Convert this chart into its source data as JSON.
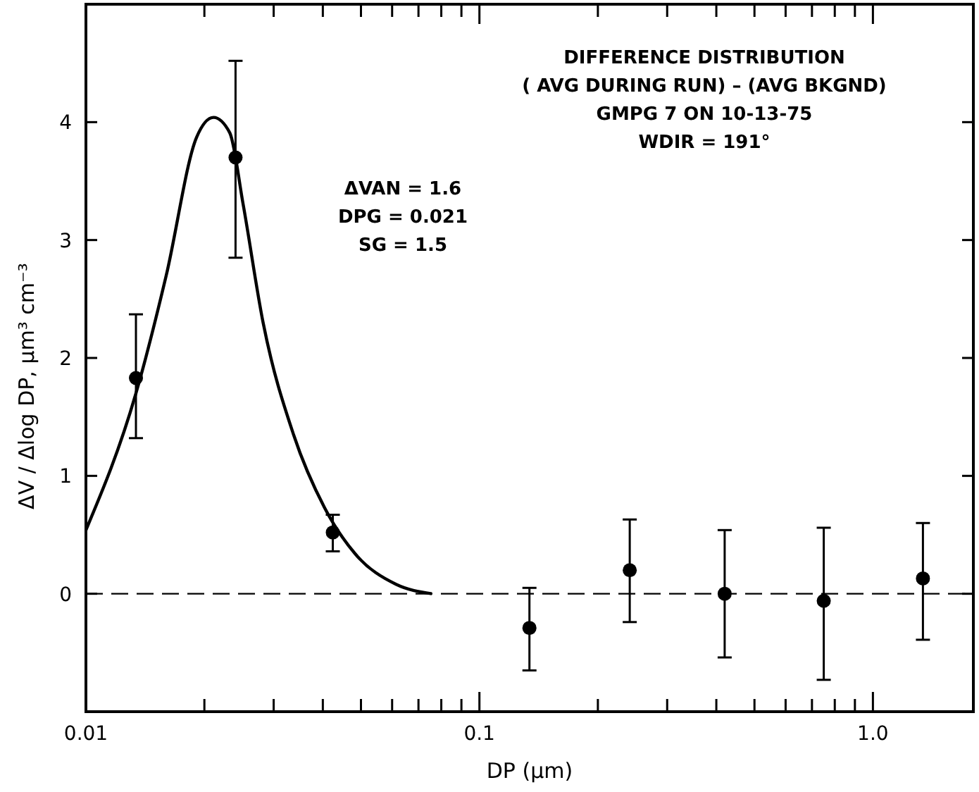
{
  "chart_data": {
    "type": "scatter",
    "xlabel": "DP (μm)",
    "ylabel": "ΔV / Δlog DP,  μm³ cm⁻³",
    "annotations": [
      "DIFFERENCE DISTRIBUTION",
      "( AVG DURING RUN) – (AVG BKGND)",
      "GMPG 7 ON 10-13-75",
      "WDIR = 191°",
      "ΔVAN = 1.6",
      "DPG = 0.021",
      "SG = 1.5"
    ],
    "log": "x",
    "grid": false,
    "marker": "circle",
    "xlim": [
      0.01,
      1.8
    ],
    "ylim": [
      -1,
      5
    ],
    "xticks": [
      {
        "value": 0.01,
        "label": "0.01"
      },
      {
        "value": 0.02,
        "label": null
      },
      {
        "value": 0.03,
        "label": null
      },
      {
        "value": 0.04,
        "label": null
      },
      {
        "value": 0.05,
        "label": null
      },
      {
        "value": 0.06,
        "label": null
      },
      {
        "value": 0.07,
        "label": null
      },
      {
        "value": 0.08,
        "label": null
      },
      {
        "value": 0.09,
        "label": null
      },
      {
        "value": 0.1,
        "label": "0.1"
      },
      {
        "value": 0.2,
        "label": null
      },
      {
        "value": 0.3,
        "label": null
      },
      {
        "value": 0.4,
        "label": null
      },
      {
        "value": 0.5,
        "label": null
      },
      {
        "value": 0.6,
        "label": null
      },
      {
        "value": 0.7,
        "label": null
      },
      {
        "value": 0.8,
        "label": null
      },
      {
        "value": 0.9,
        "label": null
      },
      {
        "value": 1,
        "label": "1.0"
      }
    ],
    "yticks": [
      0,
      1,
      2,
      3,
      4
    ],
    "ref_lines": [
      {
        "axis": "y",
        "value": 0,
        "line_style": "dashed",
        "color": "#000000"
      }
    ],
    "series": [
      {
        "color": "#000000",
        "x": [
          0.0134,
          0.024,
          0.0424,
          0.134,
          0.241,
          0.42,
          0.75,
          1.34
        ],
        "values": [
          1.83,
          3.7,
          0.52,
          -0.29,
          0.2,
          0,
          -0.06,
          0.13
        ],
        "errors": [
          [
            1.32,
            2.37
          ],
          [
            2.85,
            4.52
          ],
          [
            0.36,
            0.67
          ],
          [
            -0.65,
            0.05
          ],
          [
            -0.24,
            0.63
          ],
          [
            -0.54,
            0.54
          ],
          [
            -0.73,
            0.56
          ],
          [
            -0.39,
            0.6
          ]
        ]
      },
      {
        "type": "line",
        "color": "#000000",
        "marker": "none",
        "line_style": "solid",
        "x": [
          0.01,
          0.0134,
          0.016,
          0.0191,
          0.0211,
          0.0232,
          0.0251,
          0.0282,
          0.0337,
          0.0404,
          0.0483,
          0.0614,
          0.0757
        ],
        "values": [
          0.54,
          1.7,
          2.7,
          3.87,
          4.04,
          3.91,
          3.3,
          2.3,
          1.35,
          0.73,
          0.34,
          0.08,
          0
        ]
      }
    ]
  }
}
